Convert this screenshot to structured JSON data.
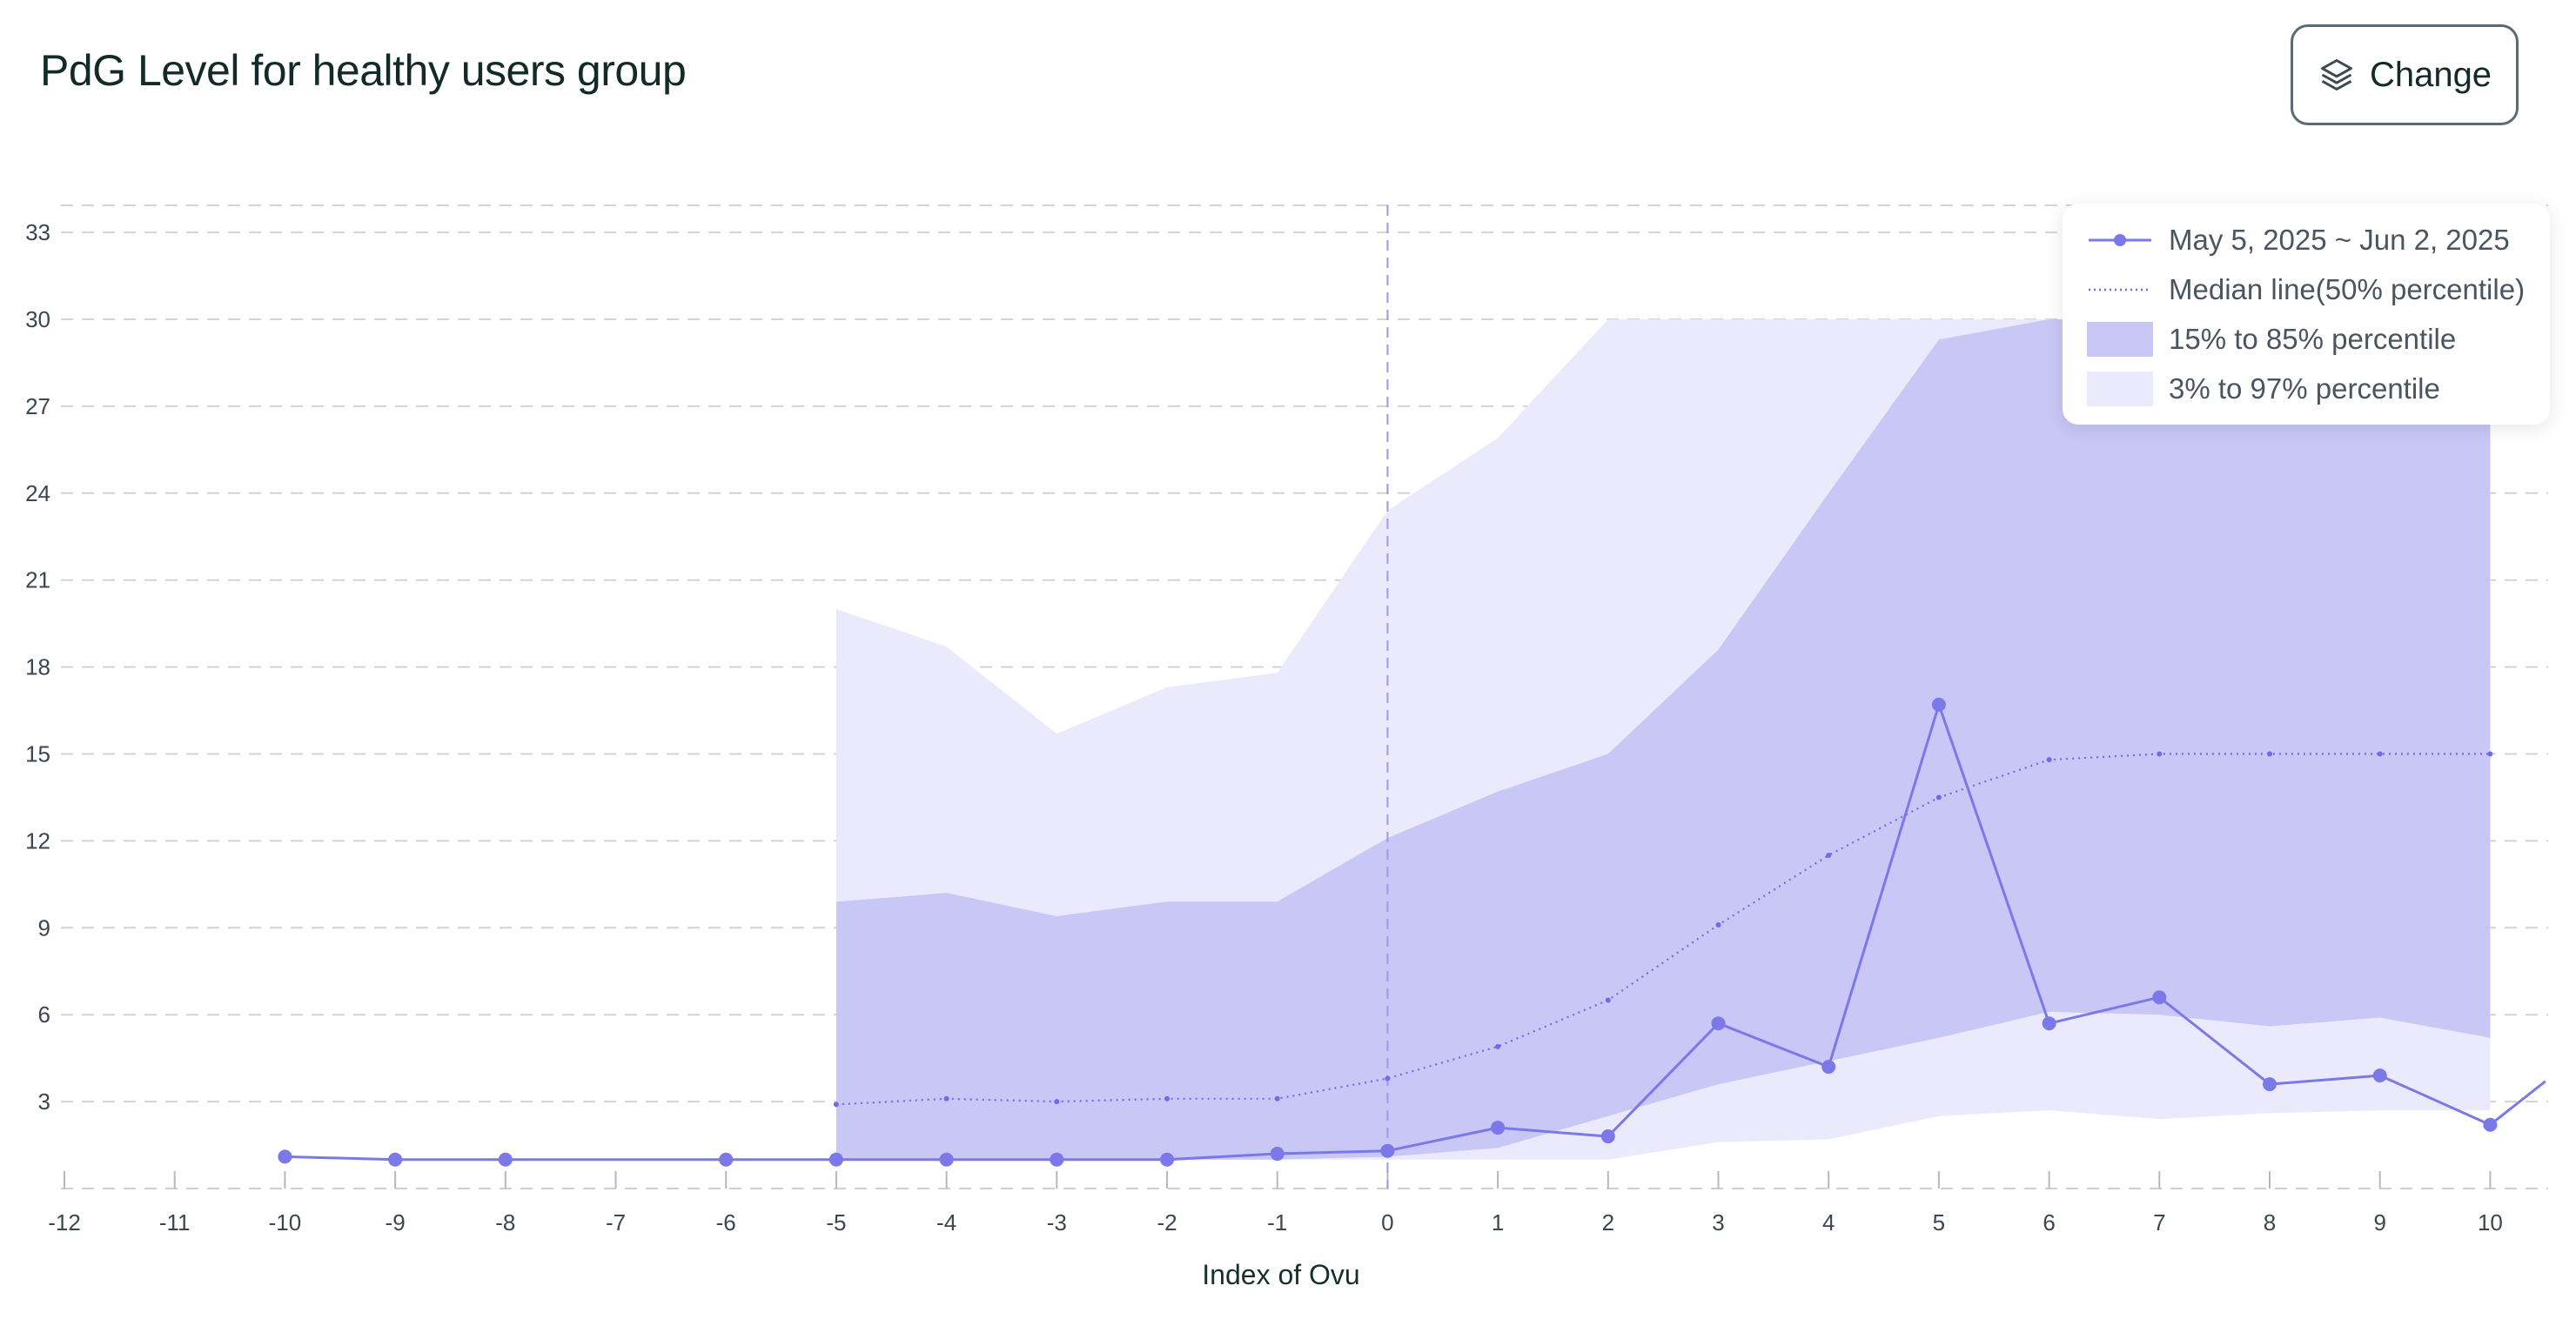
{
  "header": {
    "title": "PdG Level for healthy users group",
    "change_label": "Change",
    "change_icon": "layers-icon"
  },
  "colors": {
    "series_line": "#7b78ea",
    "median_line": "#6f6ce6",
    "band_15_85": "#c8c7f6",
    "band_3_97": "#ebeafc",
    "grid": "#d4d4d4",
    "ovulation_line": "#9b98ee"
  },
  "legend": {
    "placement": "top-right",
    "items": [
      {
        "label": "May 5, 2025 ~ Jun 2, 2025",
        "kind": "line-marker"
      },
      {
        "label": "Median line(50% percentile)",
        "kind": "dotted"
      },
      {
        "label": "15% to 85% percentile",
        "kind": "band-dark"
      },
      {
        "label": "3% to 97% percentile",
        "kind": "band-light"
      }
    ]
  },
  "chart_data": {
    "type": "line",
    "xlabel": "Index of Ovu",
    "ylabel": "",
    "xlim": [
      -12,
      10.5
    ],
    "ylim": [
      0,
      34
    ],
    "x_ticks": [
      -12,
      -11,
      -10,
      -9,
      -8,
      -7,
      -6,
      -5,
      -4,
      -3,
      -2,
      -1,
      0,
      1,
      2,
      3,
      4,
      5,
      6,
      7,
      8,
      9,
      10
    ],
    "y_ticks": [
      3,
      6,
      9,
      12,
      15,
      18,
      21,
      24,
      27,
      30,
      33
    ],
    "grid": true,
    "vertical_marker_x": 0,
    "series": [
      {
        "name": "May 5, 2025 ~ Jun 2, 2025",
        "points": [
          [
            -10,
            1.1
          ],
          [
            -9,
            1.0
          ],
          [
            -8,
            1.0
          ],
          [
            -6,
            1.0
          ],
          [
            -5,
            1.0
          ],
          [
            -4,
            1.0
          ],
          [
            -3,
            1.0
          ],
          [
            -2,
            1.0
          ],
          [
            -1,
            1.2
          ],
          [
            0,
            1.3
          ],
          [
            1,
            2.1
          ],
          [
            2,
            1.8
          ],
          [
            3,
            5.7
          ],
          [
            4,
            4.2
          ],
          [
            5,
            16.7
          ],
          [
            6,
            5.7
          ],
          [
            7,
            6.6
          ],
          [
            8,
            3.6
          ],
          [
            9,
            3.9
          ],
          [
            10,
            2.2
          ],
          [
            10.5,
            3.7
          ]
        ]
      },
      {
        "name": "Median line(50% percentile)",
        "style": "dotted",
        "points": [
          [
            -5,
            2.9
          ],
          [
            -4,
            3.1
          ],
          [
            -3,
            3.0
          ],
          [
            -2,
            3.1
          ],
          [
            -1,
            3.1
          ],
          [
            0,
            3.8
          ],
          [
            1,
            4.9
          ],
          [
            2,
            6.5
          ],
          [
            3,
            9.1
          ],
          [
            4,
            11.5
          ],
          [
            5,
            13.5
          ],
          [
            6,
            14.8
          ],
          [
            7,
            15.0
          ],
          [
            8,
            15.0
          ],
          [
            9,
            15.0
          ],
          [
            10,
            15.0
          ]
        ]
      }
    ],
    "bands": [
      {
        "name": "3% to 97% percentile",
        "x": [
          -5,
          -4,
          -3,
          -2,
          -1,
          0,
          1,
          2,
          3,
          4,
          5,
          6,
          7,
          8,
          9,
          10
        ],
        "lower": [
          1.0,
          1.0,
          1.0,
          1.0,
          1.0,
          1.0,
          1.0,
          1.0,
          1.6,
          1.7,
          2.5,
          2.7,
          2.4,
          2.6,
          2.7,
          2.7
        ],
        "upper": [
          20.0,
          18.7,
          15.7,
          17.3,
          17.8,
          23.4,
          25.9,
          30.0,
          30.0,
          30.0,
          30.0,
          30.0,
          30.0,
          30.0,
          30.0,
          30.0
        ]
      },
      {
        "name": "15% to 85% percentile",
        "x": [
          -5,
          -4,
          -3,
          -2,
          -1,
          0,
          1,
          2,
          3,
          4,
          5,
          6,
          7,
          8,
          9,
          10
        ],
        "lower": [
          1.0,
          1.0,
          1.0,
          1.0,
          1.0,
          1.1,
          1.4,
          2.5,
          3.6,
          4.4,
          5.2,
          6.1,
          6.0,
          5.6,
          5.9,
          5.2
        ],
        "upper": [
          9.9,
          10.2,
          9.4,
          9.9,
          9.9,
          12.1,
          13.7,
          15.0,
          18.6,
          24.0,
          29.3,
          30.0,
          30.0,
          30.0,
          30.0,
          30.0
        ]
      }
    ]
  }
}
